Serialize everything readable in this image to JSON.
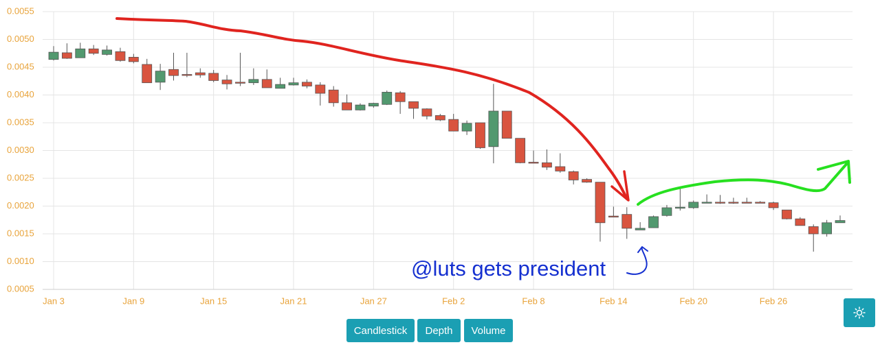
{
  "chart_data": {
    "type": "candlestick",
    "categories": [
      "Jan 3",
      null,
      null,
      null,
      null,
      null,
      "Jan 9",
      null,
      null,
      null,
      null,
      null,
      "Jan 15",
      null,
      null,
      null,
      null,
      null,
      "Jan 21",
      null,
      null,
      null,
      null,
      null,
      "Jan 27",
      null,
      null,
      null,
      null,
      null,
      "Feb 2",
      null,
      null,
      null,
      null,
      null,
      "Feb 8",
      null,
      null,
      null,
      null,
      null,
      "Feb 14",
      null,
      null,
      null,
      null,
      null,
      "Feb 20",
      null,
      null,
      null,
      null,
      null,
      "Feb 26",
      null,
      null,
      null,
      null,
      null
    ],
    "open": [
      0.00464,
      0.00476,
      0.00467,
      0.00483,
      0.00473,
      0.00478,
      0.00468,
      0.00455,
      0.00423,
      0.00446,
      0.00437,
      0.0044,
      0.00439,
      0.00427,
      0.00423,
      0.00422,
      0.00428,
      0.00412,
      0.00418,
      0.00423,
      0.00418,
      0.00409,
      0.00386,
      0.00373,
      0.0038,
      0.00383,
      0.00404,
      0.00388,
      0.00375,
      0.00363,
      0.00356,
      0.00335,
      0.0035,
      0.00307,
      0.00371,
      0.00322,
      0.00279,
      0.00278,
      0.00271,
      0.00262,
      0.00248,
      0.00243,
      0.00182,
      0.00185,
      0.00157,
      0.00161,
      0.00183,
      0.00197,
      0.00197,
      0.00207,
      0.00207,
      0.00207,
      0.00207,
      0.00207,
      0.00206,
      0.00193,
      0.00177,
      0.00163,
      0.0015,
      0.0017
    ],
    "high": [
      0.00488,
      0.00493,
      0.00494,
      0.0049,
      0.00489,
      0.00485,
      0.00474,
      0.00465,
      0.00456,
      0.00476,
      0.00476,
      0.00448,
      0.00445,
      0.00436,
      0.00476,
      0.00448,
      0.00446,
      0.00431,
      0.00431,
      0.00428,
      0.00423,
      0.00416,
      0.00401,
      0.00385,
      0.00386,
      0.00408,
      0.00407,
      0.00388,
      0.00376,
      0.00366,
      0.00366,
      0.00354,
      0.0035,
      0.0042,
      0.00371,
      0.00322,
      0.003,
      0.00302,
      0.00295,
      0.00264,
      0.0025,
      0.00243,
      0.00199,
      0.00198,
      0.00171,
      0.00183,
      0.00202,
      0.00235,
      0.0021,
      0.00221,
      0.0022,
      0.00215,
      0.00215,
      0.00209,
      0.00208,
      0.00193,
      0.0018,
      0.00167,
      0.00175,
      0.00183
    ],
    "low": [
      0.00462,
      0.00465,
      0.00467,
      0.00472,
      0.00471,
      0.0046,
      0.00457,
      0.00422,
      0.00409,
      0.00426,
      0.00432,
      0.00431,
      0.00423,
      0.0041,
      0.00416,
      0.00418,
      0.00413,
      0.00412,
      0.00417,
      0.00412,
      0.00381,
      0.00379,
      0.00373,
      0.00372,
      0.00377,
      0.00382,
      0.00366,
      0.00357,
      0.00356,
      0.00353,
      0.00335,
      0.00328,
      0.00303,
      0.00277,
      0.00322,
      0.00277,
      0.00277,
      0.00265,
      0.0026,
      0.00239,
      0.00242,
      0.00136,
      0.00181,
      0.00141,
      0.00157,
      0.00161,
      0.00181,
      0.00192,
      0.00195,
      0.00205,
      0.00204,
      0.00204,
      0.00205,
      0.00205,
      0.00193,
      0.00176,
      0.00165,
      0.00118,
      0.00145,
      0.00172
    ],
    "close": [
      0.00477,
      0.00466,
      0.00483,
      0.00475,
      0.00481,
      0.00462,
      0.0046,
      0.00422,
      0.00443,
      0.00435,
      0.00436,
      0.00436,
      0.00426,
      0.0042,
      0.00422,
      0.00428,
      0.00413,
      0.00419,
      0.00422,
      0.00416,
      0.00403,
      0.00386,
      0.00373,
      0.00382,
      0.00385,
      0.00405,
      0.00388,
      0.00376,
      0.00362,
      0.00355,
      0.00335,
      0.00349,
      0.00305,
      0.00371,
      0.00322,
      0.00278,
      0.00278,
      0.0027,
      0.00263,
      0.00247,
      0.00243,
      0.0017,
      0.00181,
      0.0016,
      0.0016,
      0.00181,
      0.00197,
      0.00198,
      0.00207,
      0.00207,
      0.00206,
      0.00206,
      0.00206,
      0.00206,
      0.00197,
      0.00177,
      0.00165,
      0.0015,
      0.0017,
      0.00174
    ],
    "up_color": "#52996f",
    "down_color": "#d9543f",
    "ylim": [
      0.0005,
      0.0055
    ],
    "yticks": [
      0.0005,
      {
        "value": 0.001,
        "label": "0.0010"
      },
      0.0015,
      {
        "value": 0.002,
        "label": "0.0020"
      },
      0.0025,
      {
        "value": 0.003,
        "label": "0.0030"
      },
      0.0035,
      {
        "value": 0.004,
        "label": "0.0040"
      },
      0.0045,
      {
        "value": 0.005,
        "label": "0.0050"
      },
      0.0055
    ],
    "grid": true,
    "annotation": "@luts gets president"
  },
  "controls": {
    "buttons": [
      "Candlestick",
      "Depth",
      "Volume"
    ]
  }
}
